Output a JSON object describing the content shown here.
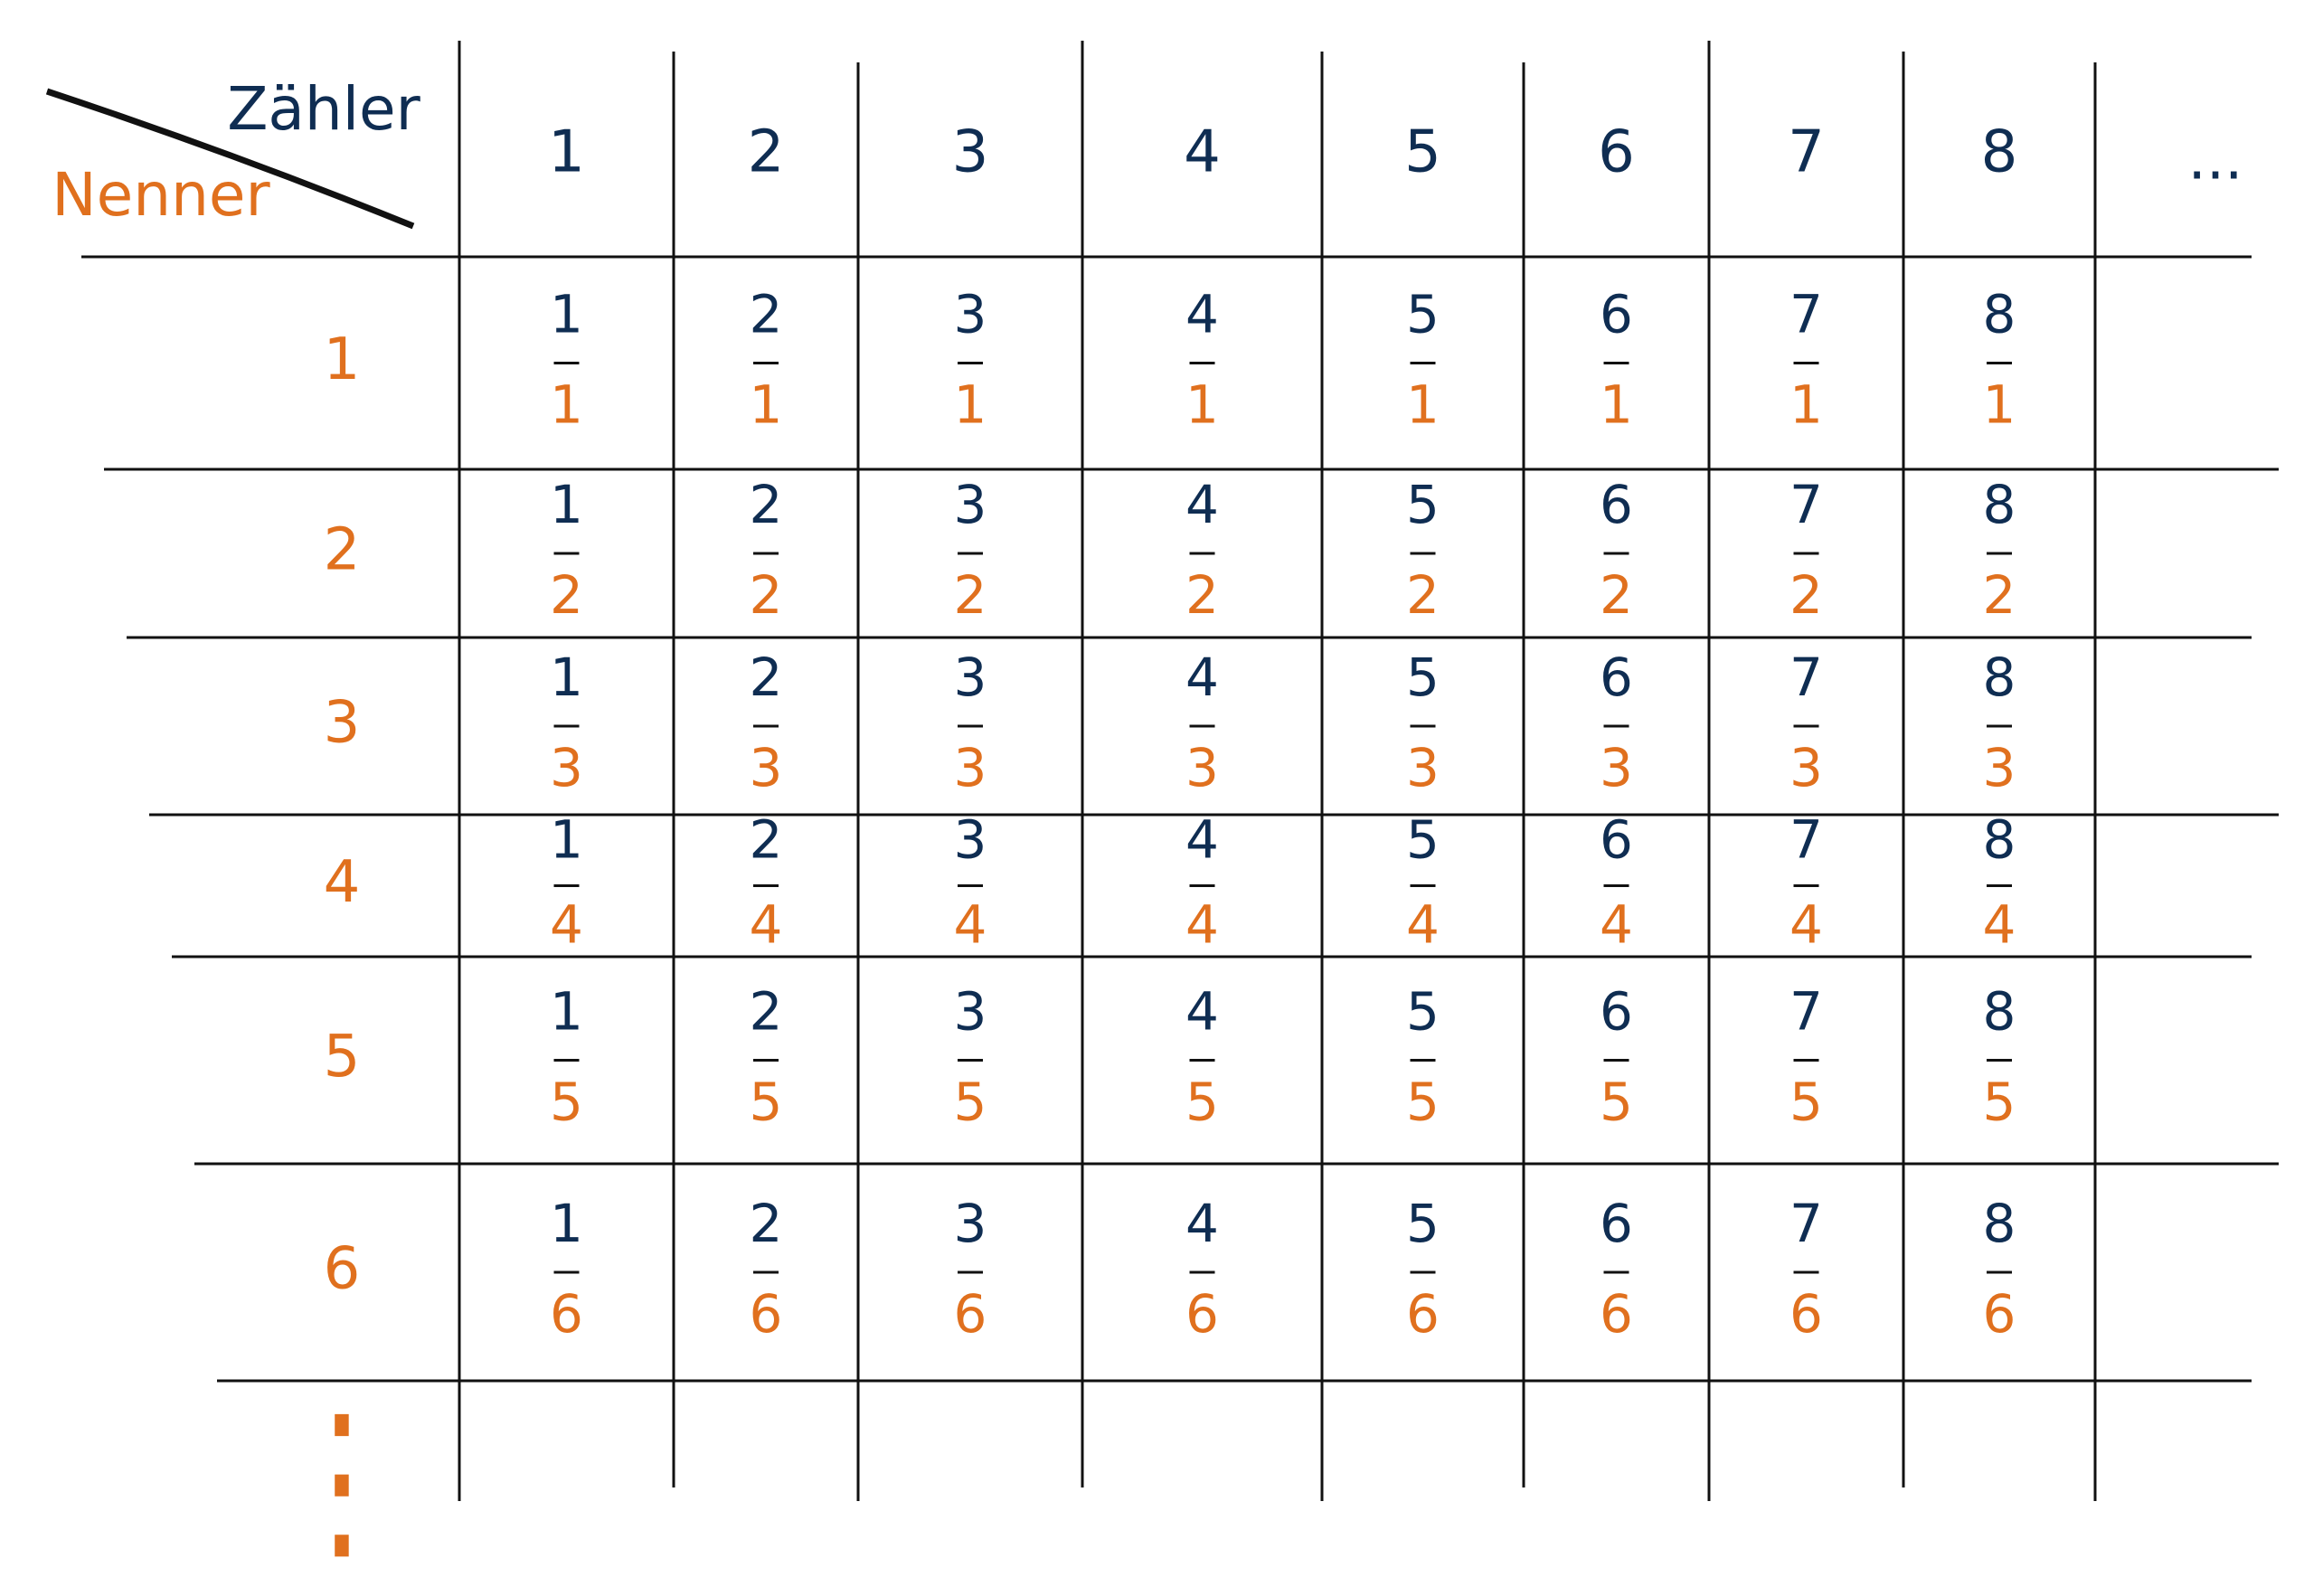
{
  "header": {
    "numerator_label": "Zähler",
    "denominator_label": "Nenner"
  },
  "table": {
    "columns": [
      "1",
      "2",
      "3",
      "4",
      "5",
      "6",
      "7",
      "8"
    ],
    "column_ellipsis": "...",
    "rows": [
      {
        "label": "1",
        "cells": [
          {
            "numerator": "1",
            "denominator": "1"
          },
          {
            "numerator": "2",
            "denominator": "1"
          },
          {
            "numerator": "3",
            "denominator": "1"
          },
          {
            "numerator": "4",
            "denominator": "1"
          },
          {
            "numerator": "5",
            "denominator": "1"
          },
          {
            "numerator": "6",
            "denominator": "1"
          },
          {
            "numerator": "7",
            "denominator": "1"
          },
          {
            "numerator": "8",
            "denominator": "1"
          }
        ]
      },
      {
        "label": "2",
        "cells": [
          {
            "numerator": "1",
            "denominator": "2"
          },
          {
            "numerator": "2",
            "denominator": "2"
          },
          {
            "numerator": "3",
            "denominator": "2"
          },
          {
            "numerator": "4",
            "denominator": "2"
          },
          {
            "numerator": "5",
            "denominator": "2"
          },
          {
            "numerator": "6",
            "denominator": "2"
          },
          {
            "numerator": "7",
            "denominator": "2"
          },
          {
            "numerator": "8",
            "denominator": "2"
          }
        ]
      },
      {
        "label": "3",
        "cells": [
          {
            "numerator": "1",
            "denominator": "3"
          },
          {
            "numerator": "2",
            "denominator": "3"
          },
          {
            "numerator": "3",
            "denominator": "3"
          },
          {
            "numerator": "4",
            "denominator": "3"
          },
          {
            "numerator": "5",
            "denominator": "3"
          },
          {
            "numerator": "6",
            "denominator": "3"
          },
          {
            "numerator": "7",
            "denominator": "3"
          },
          {
            "numerator": "8",
            "denominator": "3"
          }
        ]
      },
      {
        "label": "4",
        "cells": [
          {
            "numerator": "1",
            "denominator": "4"
          },
          {
            "numerator": "2",
            "denominator": "4"
          },
          {
            "numerator": "3",
            "denominator": "4"
          },
          {
            "numerator": "4",
            "denominator": "4"
          },
          {
            "numerator": "5",
            "denominator": "4"
          },
          {
            "numerator": "6",
            "denominator": "4"
          },
          {
            "numerator": "7",
            "denominator": "4"
          },
          {
            "numerator": "8",
            "denominator": "4"
          }
        ]
      },
      {
        "label": "5",
        "cells": [
          {
            "numerator": "1",
            "denominator": "5"
          },
          {
            "numerator": "2",
            "denominator": "5"
          },
          {
            "numerator": "3",
            "denominator": "5"
          },
          {
            "numerator": "4",
            "denominator": "5"
          },
          {
            "numerator": "5",
            "denominator": "5"
          },
          {
            "numerator": "6",
            "denominator": "5"
          },
          {
            "numerator": "7",
            "denominator": "5"
          },
          {
            "numerator": "8",
            "denominator": "5"
          }
        ]
      },
      {
        "label": "6",
        "cells": [
          {
            "numerator": "1",
            "denominator": "6"
          },
          {
            "numerator": "2",
            "denominator": "6"
          },
          {
            "numerator": "3",
            "denominator": "6"
          },
          {
            "numerator": "4",
            "denominator": "6"
          },
          {
            "numerator": "5",
            "denominator": "6"
          },
          {
            "numerator": "6",
            "denominator": "6"
          },
          {
            "numerator": "7",
            "denominator": "6"
          },
          {
            "numerator": "8",
            "denominator": "6"
          }
        ]
      }
    ],
    "row_ellipsis": "⋮"
  }
}
